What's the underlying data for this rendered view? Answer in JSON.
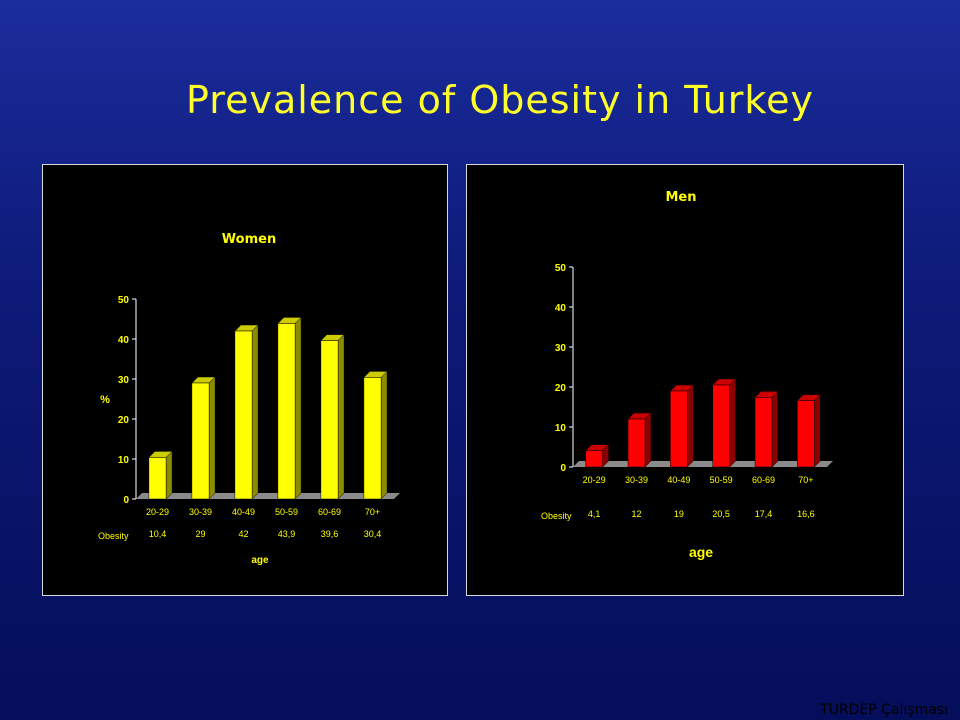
{
  "slide": {
    "title": "Prevalence of Obesity in Turkey",
    "footer": "TURDEP Çalışması"
  },
  "colors": {
    "women_bar": "#ffff00",
    "men_bar": "#ff0000",
    "title": "#ffff2a"
  },
  "chart_data": [
    {
      "type": "bar",
      "title": "Women",
      "ylabel": "%",
      "xlabel": "age",
      "row_label": "Obesity",
      "categories": [
        "20-29",
        "30-39",
        "40-49",
        "50-59",
        "60-69",
        "70+"
      ],
      "values": [
        10.4,
        29,
        42,
        43.9,
        39.6,
        30.4
      ],
      "value_labels": [
        "10,4",
        "29",
        "42",
        "43,9",
        "39,6",
        "30,4"
      ],
      "y_ticks": [
        "0",
        "10",
        "20",
        "30",
        "40",
        "50"
      ],
      "ylim": [
        0,
        50
      ],
      "grid": false,
      "legend": "none"
    },
    {
      "type": "bar",
      "title": "Men",
      "ylabel": "",
      "xlabel": "age",
      "row_label": "Obesity",
      "categories": [
        "20-29",
        "30-39",
        "40-49",
        "50-59",
        "60-69",
        "70+"
      ],
      "values": [
        4.1,
        12,
        19,
        20.5,
        17.4,
        16.6
      ],
      "value_labels": [
        "4,1",
        "12",
        "19",
        "20,5",
        "17,4",
        "16,6"
      ],
      "y_ticks": [
        "0",
        "10",
        "20",
        "30",
        "40",
        "50"
      ],
      "ylim": [
        0,
        50
      ],
      "grid": false,
      "legend": "none"
    }
  ]
}
